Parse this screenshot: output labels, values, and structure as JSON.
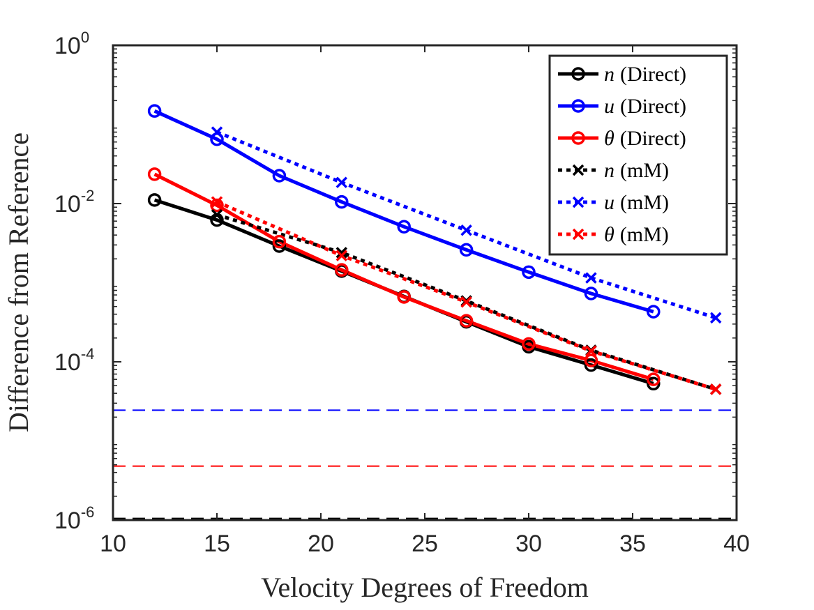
{
  "chart_data": {
    "type": "line",
    "title": "",
    "xlabel": "Velocity Degrees of Freedom",
    "ylabel": "Difference from Reference",
    "xlim": [
      10,
      40
    ],
    "ylim": [
      1e-06,
      1
    ],
    "yscale": "log",
    "grid": false,
    "legend_position": "top-right",
    "x_ticks": [
      {
        "value": 10,
        "label": "10"
      },
      {
        "value": 15,
        "label": "15"
      },
      {
        "value": 20,
        "label": "20"
      },
      {
        "value": 25,
        "label": "25"
      },
      {
        "value": 30,
        "label": "30"
      },
      {
        "value": 35,
        "label": "35"
      },
      {
        "value": 40,
        "label": "40"
      }
    ],
    "y_ticks": [
      {
        "value": 1,
        "base": "10",
        "exp": "0"
      },
      {
        "value": 0.01,
        "base": "10",
        "exp": "-2"
      },
      {
        "value": 0.0001,
        "base": "10",
        "exp": "-4"
      },
      {
        "value": 1e-06,
        "base": "10",
        "exp": "-6"
      }
    ],
    "series": [
      {
        "name": "n (Direct)",
        "var": "n",
        "method": "(Direct)",
        "color": "#000000",
        "style": "solid",
        "marker": "circle",
        "x": [
          12,
          15,
          18,
          21,
          24,
          27,
          30,
          33,
          36
        ],
        "y": [
          0.0111,
          0.0062,
          0.0029,
          0.0014,
          0.00067,
          0.00032,
          0.000155,
          9.1e-05,
          5.3e-05
        ]
      },
      {
        "name": "u (Direct)",
        "var": "u",
        "method": "(Direct)",
        "color": "#0000ff",
        "style": "solid",
        "marker": "circle",
        "x": [
          12,
          15,
          18,
          21,
          24,
          27,
          30,
          33,
          36
        ],
        "y": [
          0.148,
          0.065,
          0.0225,
          0.0105,
          0.0051,
          0.0026,
          0.00136,
          0.00073,
          0.00043
        ]
      },
      {
        "name": "θ (Direct)",
        "var": "θ",
        "method": "(Direct)",
        "color": "#ff0000",
        "style": "solid",
        "marker": "circle",
        "x": [
          12,
          15,
          18,
          21,
          24,
          27,
          30,
          33,
          36
        ],
        "y": [
          0.0235,
          0.0095,
          0.0033,
          0.00145,
          0.00066,
          0.00033,
          0.000168,
          0.000104,
          6e-05
        ]
      },
      {
        "name": "n (mM)",
        "var": "n",
        "method": "(mM)",
        "color": "#000000",
        "style": "dotted",
        "marker": "x",
        "x": [
          15,
          21,
          27,
          33,
          39
        ],
        "y": [
          0.0072,
          0.0024,
          0.00059,
          0.00014,
          4.5e-05
        ]
      },
      {
        "name": "u (mM)",
        "var": "u",
        "method": "(mM)",
        "color": "#0000ff",
        "style": "dotted",
        "marker": "x",
        "x": [
          15,
          21,
          27,
          33,
          39
        ],
        "y": [
          0.08,
          0.0185,
          0.0046,
          0.00115,
          0.00036
        ]
      },
      {
        "name": "θ (mM)",
        "var": "θ",
        "method": "(mM)",
        "color": "#ff0000",
        "style": "dotted",
        "marker": "x",
        "x": [
          15,
          21,
          27,
          33,
          39
        ],
        "y": [
          0.0105,
          0.0022,
          0.00057,
          0.000137,
          4.5e-05
        ]
      }
    ],
    "reference_lines": [
      {
        "name": "u reference",
        "y": 2.45e-05,
        "color": "#0000ff"
      },
      {
        "name": "θ reference",
        "y": 4.8e-06,
        "color": "#ff0000"
      },
      {
        "name": "n reference",
        "y": 1.05e-06,
        "color": "#000000"
      }
    ]
  }
}
